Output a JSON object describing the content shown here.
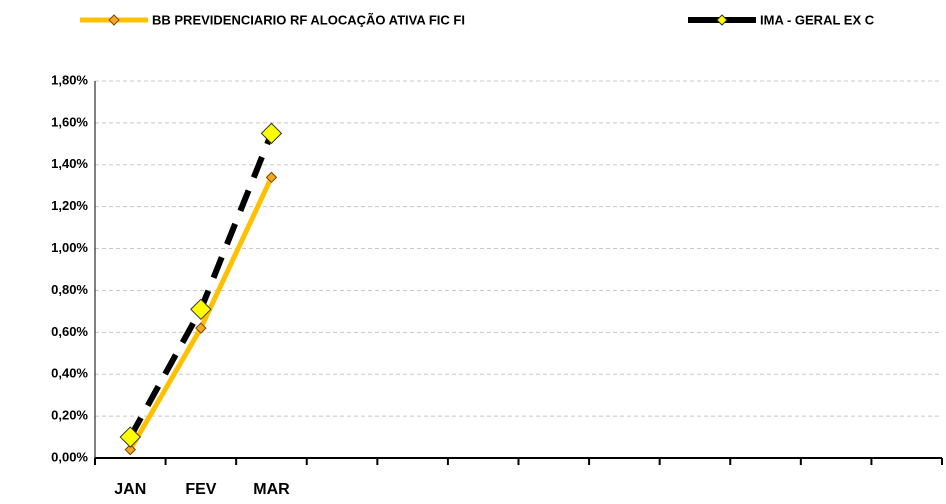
{
  "chart_data": {
    "type": "line",
    "categories": [
      "JAN",
      "FEV",
      "MAR",
      null,
      null,
      null,
      null,
      null,
      null,
      null,
      null,
      null
    ],
    "series": [
      {
        "name": "BB PREVIDENCIARIO RF ALOCAÇÃO ATIVA FIC FI",
        "color": "#ffc000",
        "values": [
          0.04,
          0.62,
          1.34,
          null,
          null,
          null,
          null,
          null,
          null,
          null,
          null,
          null
        ]
      },
      {
        "name": "IMA - GERAL EX C",
        "color": "#000000",
        "values": [
          0.1,
          0.71,
          1.55,
          null,
          null,
          null,
          null,
          null,
          null,
          null,
          null,
          null
        ]
      }
    ],
    "ylim": [
      0,
      1.8
    ],
    "yticks": [
      {
        "value": 0,
        "label": "0,00%"
      },
      {
        "value": 0.2,
        "label": "0,20%"
      },
      {
        "value": 0.4,
        "label": "0,40%"
      },
      {
        "value": 0.6,
        "label": "0,60%"
      },
      {
        "value": 0.8,
        "label": "0,80%"
      },
      {
        "value": 1.0,
        "label": "1,00%"
      },
      {
        "value": 1.2,
        "label": "1,20%"
      },
      {
        "value": 1.4,
        "label": "1,40%"
      },
      {
        "value": 1.6,
        "label": "1,60%"
      },
      {
        "value": 1.8,
        "label": "1,80%"
      }
    ],
    "grid": true
  }
}
